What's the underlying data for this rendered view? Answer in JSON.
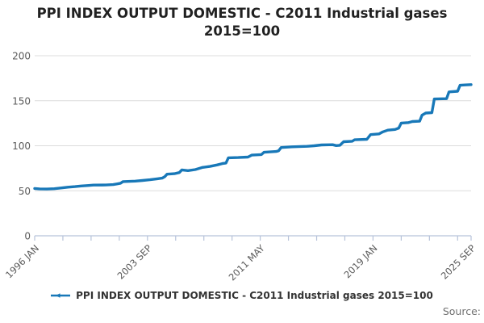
{
  "title_line1": "PPI INDEX OUTPUT DOMESTIC - C2011 Industrial gases",
  "title_line2": "2015=100",
  "legend": {
    "label": "PPI INDEX OUTPUT DOMESTIC - C2011 Industrial gases 2015=100"
  },
  "source_label": "Source:",
  "colors": {
    "series_line": "#1878b8",
    "axis": "#b7c3da",
    "gridline": "#dcdcdc",
    "tick_label": "#5a5a5a",
    "title_text": "#212121",
    "legend_text": "#333333",
    "source_text": "#707070"
  },
  "chart_data": {
    "type": "line",
    "title": "PPI INDEX OUTPUT DOMESTIC - C2011 Industrial gases",
    "subtitle": "2015=100",
    "series_name": "PPI INDEX OUTPUT DOMESTIC - C2011 Industrial gases 2015=100",
    "x_start": "1996 JAN",
    "x_end": "2025 SEP",
    "x_total_months": 356,
    "x_tick_labels": [
      "1996 JAN",
      "2003 SEP",
      "2011 MAY",
      "2019 JAN",
      "2025 SEP"
    ],
    "x_label_months": [
      0,
      92,
      184,
      276,
      356
    ],
    "x_minor_tick_months": [
      0,
      23,
      46,
      69,
      92,
      115,
      138,
      161,
      184,
      207,
      230,
      253,
      276,
      299,
      322,
      345,
      356
    ],
    "y_ticks": [
      0,
      50,
      100,
      150,
      200
    ],
    "ylim": [
      0,
      200
    ],
    "grid": "horizontal",
    "legend_position": "bottom",
    "points_note": "pairs of [months since 1996 JAN, index value 2015=100]",
    "points": [
      [
        0,
        52.6
      ],
      [
        4,
        52.1
      ],
      [
        10,
        51.9
      ],
      [
        16,
        52.3
      ],
      [
        22,
        53.2
      ],
      [
        27,
        54.0
      ],
      [
        33,
        54.6
      ],
      [
        38,
        55.3
      ],
      [
        44,
        55.9
      ],
      [
        48,
        56.3
      ],
      [
        58,
        56.4
      ],
      [
        64,
        56.9
      ],
      [
        67,
        57.6
      ],
      [
        70,
        58.4
      ],
      [
        72,
        60.2
      ],
      [
        82,
        60.7
      ],
      [
        88,
        61.4
      ],
      [
        94,
        62.2
      ],
      [
        100,
        63.3
      ],
      [
        104,
        64.0
      ],
      [
        106,
        65.6
      ],
      [
        108,
        68.4
      ],
      [
        114,
        69.0
      ],
      [
        118,
        70.2
      ],
      [
        120,
        73.2
      ],
      [
        125,
        72.4
      ],
      [
        131,
        73.5
      ],
      [
        137,
        76.0
      ],
      [
        143,
        77.0
      ],
      [
        149,
        78.7
      ],
      [
        153,
        80.2
      ],
      [
        156,
        80.8
      ],
      [
        158,
        86.6
      ],
      [
        166,
        86.9
      ],
      [
        174,
        87.4
      ],
      [
        177,
        89.6
      ],
      [
        185,
        90.2
      ],
      [
        187,
        92.7
      ],
      [
        197,
        93.6
      ],
      [
        199,
        94.4
      ],
      [
        201,
        98.0
      ],
      [
        210,
        98.8
      ],
      [
        222,
        99.4
      ],
      [
        228,
        100.0
      ],
      [
        234,
        100.9
      ],
      [
        243,
        101.2
      ],
      [
        246,
        100.2
      ],
      [
        249,
        100.5
      ],
      [
        252,
        104.5
      ],
      [
        259,
        105.0
      ],
      [
        261,
        106.6
      ],
      [
        271,
        107.2
      ],
      [
        274,
        112.4
      ],
      [
        281,
        113.2
      ],
      [
        284,
        115.4
      ],
      [
        288,
        117.3
      ],
      [
        294,
        118.1
      ],
      [
        297,
        119.6
      ],
      [
        299,
        125.2
      ],
      [
        305,
        125.7
      ],
      [
        308,
        126.9
      ],
      [
        314,
        127.3
      ],
      [
        316,
        134.0
      ],
      [
        319,
        136.3
      ],
      [
        324,
        136.8
      ],
      [
        326,
        151.9
      ],
      [
        336,
        152.3
      ],
      [
        338,
        159.8
      ],
      [
        345,
        160.5
      ],
      [
        347,
        167.2
      ],
      [
        351,
        167.5
      ],
      [
        356,
        167.9
      ]
    ]
  }
}
